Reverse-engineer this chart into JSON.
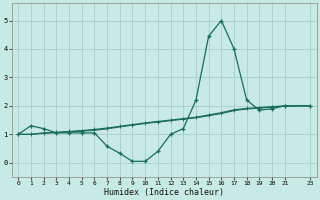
{
  "xlabel": "Humidex (Indice chaleur)",
  "bg_color": "#c8eae4",
  "grid_color": "#a8cec8",
  "line_color": "#1a6b5a",
  "xlim": [
    -0.5,
    23.5
  ],
  "ylim": [
    -0.5,
    5.6
  ],
  "yticks": [
    0,
    1,
    2,
    3,
    4,
    5
  ],
  "xticks": [
    0,
    1,
    2,
    3,
    4,
    5,
    6,
    7,
    8,
    9,
    10,
    11,
    12,
    13,
    14,
    15,
    16,
    17,
    18,
    19,
    20,
    21,
    23
  ],
  "series1_x": [
    0,
    1,
    2,
    3,
    4,
    5,
    6,
    7,
    8,
    9,
    10,
    11,
    12,
    13,
    14,
    15,
    16,
    17,
    18,
    19,
    20,
    21,
    23
  ],
  "series1_y": [
    1.0,
    1.3,
    1.2,
    1.05,
    1.05,
    1.05,
    1.05,
    0.58,
    0.33,
    0.05,
    0.05,
    0.4,
    1.0,
    1.2,
    2.2,
    4.45,
    5.0,
    4.0,
    2.2,
    1.85,
    1.9,
    2.0,
    2.0
  ],
  "series2_x": [
    0,
    1,
    2,
    3,
    4,
    5,
    6,
    7,
    8,
    9,
    10,
    11,
    12,
    13,
    14,
    15,
    16,
    17,
    18,
    19,
    20,
    21,
    23
  ],
  "series2_y": [
    1.0,
    1.0,
    1.05,
    1.07,
    1.1,
    1.13,
    1.17,
    1.22,
    1.28,
    1.34,
    1.4,
    1.45,
    1.5,
    1.55,
    1.6,
    1.68,
    1.76,
    1.86,
    1.91,
    1.94,
    1.97,
    2.0,
    2.0
  ],
  "series3_x": [
    0,
    1,
    2,
    3,
    4,
    5,
    6,
    7,
    8,
    9,
    10,
    11,
    12,
    13,
    14,
    15,
    16,
    17,
    18,
    19,
    20,
    21,
    23
  ],
  "series3_y": [
    1.0,
    1.0,
    1.03,
    1.06,
    1.09,
    1.11,
    1.14,
    1.19,
    1.26,
    1.32,
    1.38,
    1.43,
    1.48,
    1.53,
    1.58,
    1.65,
    1.73,
    1.83,
    1.89,
    1.92,
    1.96,
    1.99,
    2.01
  ]
}
